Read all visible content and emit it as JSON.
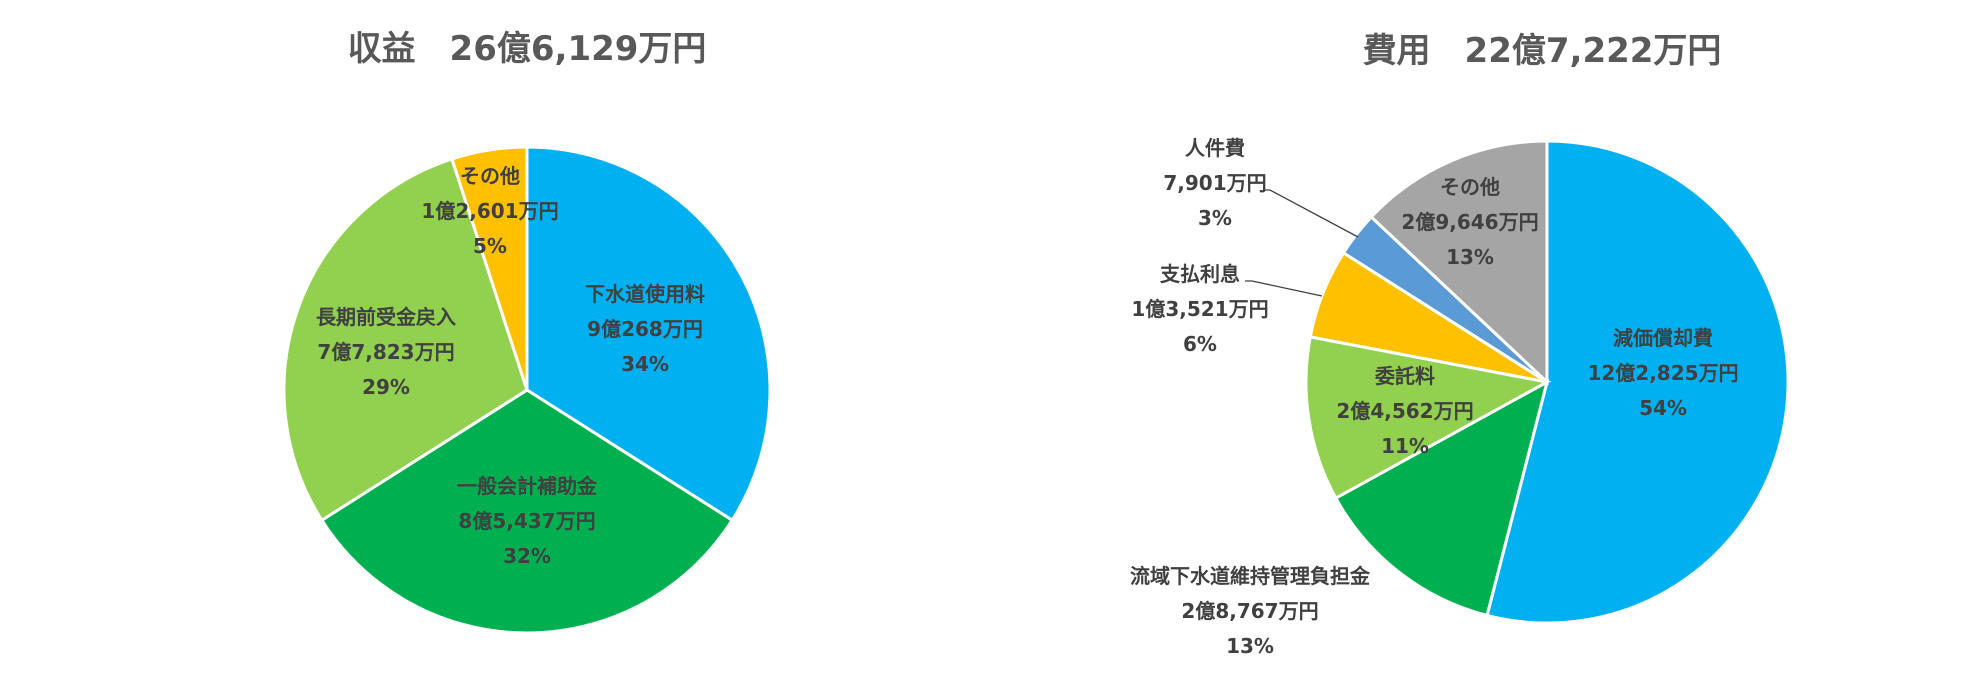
{
  "chart_data": [
    {
      "type": "pie",
      "title": "収益　26億6,129万円",
      "start_angle_deg": 0,
      "direction": "clockwise",
      "slices": [
        {
          "label": "下水道使用料",
          "amount": "9億268万円",
          "percent": "34%",
          "value": 34,
          "color": "#00B0F0"
        },
        {
          "label": "一般会計補助金",
          "amount": "8億5,437万円",
          "percent": "32%",
          "value": 32,
          "color": "#00B050"
        },
        {
          "label": "長期前受金戻入",
          "amount": "7億7,823万円",
          "percent": "29%",
          "value": 29,
          "color": "#92D050"
        },
        {
          "label": "その他",
          "amount": "1億2,601万円",
          "percent": "5%",
          "value": 5,
          "color": "#FFC000"
        }
      ]
    },
    {
      "type": "pie",
      "title": "費用　22億7,222万円",
      "start_angle_deg": 0,
      "direction": "clockwise",
      "slices": [
        {
          "label": "減価償却費",
          "amount": "12億2,825万円",
          "percent": "54%",
          "value": 54,
          "color": "#00B0F0"
        },
        {
          "label": "流域下水道維持管理負担金",
          "amount": "2億8,767万円",
          "percent": "13%",
          "value": 13,
          "color": "#00B050"
        },
        {
          "label": "委託料",
          "amount": "2億4,562万円",
          "percent": "11%",
          "value": 11,
          "color": "#92D050"
        },
        {
          "label": "支払利息",
          "amount": "1億3,521万円",
          "percent": "6%",
          "value": 6,
          "color": "#FFC000"
        },
        {
          "label": "人件費",
          "amount": "7,901万円",
          "percent": "3%",
          "value": 3,
          "color": "#5B9BD5"
        },
        {
          "label": "その他",
          "amount": "2億9,646万円",
          "percent": "13%",
          "value": 13,
          "color": "#A5A5A5"
        }
      ]
    }
  ]
}
